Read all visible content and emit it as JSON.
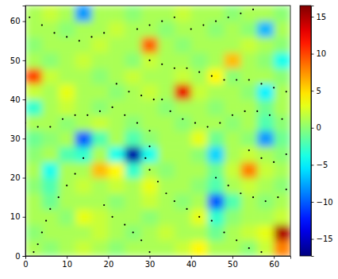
{
  "chart_data": {
    "type": "heatmap",
    "color": "jet",
    "xlim": [
      0,
      64
    ],
    "ylim": [
      0,
      64
    ],
    "xticks": [
      0,
      10,
      20,
      30,
      40,
      50,
      60
    ],
    "yticks": [
      0,
      10,
      20,
      30,
      40,
      50,
      60
    ],
    "x_edges": [
      0,
      4,
      8,
      12,
      16,
      20,
      24,
      28,
      32,
      36,
      40,
      44,
      48,
      52,
      56,
      60,
      64
    ],
    "y_edges": [
      0,
      4,
      8,
      12,
      16,
      20,
      24,
      28,
      32,
      36,
      40,
      44,
      48,
      52,
      56,
      60,
      64
    ],
    "z": [
      [
        1,
        0,
        1,
        2,
        1,
        0,
        1,
        1,
        1,
        2,
        4,
        1,
        1,
        0,
        2,
        8
      ],
      [
        0,
        1,
        1,
        1,
        2,
        1,
        0,
        1,
        2,
        1,
        1,
        -1,
        1,
        2,
        3,
        15
      ],
      [
        1,
        1,
        0,
        3,
        2,
        1,
        1,
        0,
        1,
        1,
        3,
        -3,
        0,
        1,
        1,
        2
      ],
      [
        1,
        -1,
        1,
        1,
        1,
        0,
        1,
        2,
        1,
        0,
        1,
        -10,
        -2,
        1,
        0,
        1
      ],
      [
        0,
        -2,
        1,
        2,
        1,
        2,
        1,
        3,
        1,
        1,
        0,
        -2,
        1,
        2,
        1,
        0
      ],
      [
        1,
        -4,
        1,
        1,
        6,
        4,
        -3,
        1,
        0,
        1,
        1,
        -1,
        2,
        8,
        2,
        1
      ],
      [
        0,
        1,
        -2,
        -3,
        1,
        -4,
        -16,
        -4,
        1,
        1,
        0,
        -6,
        1,
        2,
        1,
        0
      ],
      [
        -1,
        0,
        1,
        -10,
        -2,
        1,
        -2,
        0,
        1,
        1,
        3,
        -1,
        1,
        0,
        -8,
        -1
      ],
      [
        1,
        1,
        0,
        1,
        2,
        1,
        0,
        1,
        1,
        0,
        1,
        1,
        0,
        1,
        -2,
        0
      ],
      [
        -3,
        1,
        2,
        1,
        0,
        1,
        1,
        1,
        0,
        1,
        1,
        0,
        1,
        1,
        -1,
        1
      ],
      [
        2,
        1,
        3,
        1,
        1,
        0,
        1,
        2,
        1,
        13,
        2,
        1,
        1,
        0,
        -5,
        1
      ],
      [
        10,
        2,
        1,
        1,
        0,
        1,
        2,
        1,
        1,
        2,
        1,
        4,
        0,
        1,
        1,
        0
      ],
      [
        1,
        0,
        1,
        2,
        1,
        1,
        0,
        2,
        1,
        1,
        0,
        1,
        6,
        1,
        0,
        -4
      ],
      [
        0,
        1,
        1,
        1,
        2,
        1,
        1,
        9,
        1,
        0,
        1,
        1,
        1,
        2,
        1,
        0
      ],
      [
        1,
        1,
        0,
        1,
        1,
        2,
        1,
        1,
        0,
        1,
        1,
        0,
        1,
        0,
        -7,
        1
      ],
      [
        1,
        2,
        1,
        -8,
        1,
        1,
        0,
        1,
        1,
        2,
        1,
        1,
        0,
        1,
        1,
        0
      ]
    ],
    "colorbar": {
      "range": [
        -17.3,
        16.5
      ],
      "ticks": [
        {
          "value": -15,
          "label": "−15"
        },
        {
          "value": -10,
          "label": "−10"
        },
        {
          "value": -5,
          "label": "−5"
        },
        0,
        5,
        10,
        15
      ]
    },
    "particles": {
      "color": "#000000",
      "marker": "o",
      "points": [
        [
          1,
          61
        ],
        [
          4,
          59
        ],
        [
          7,
          57
        ],
        [
          10,
          56
        ],
        [
          13,
          55
        ],
        [
          16,
          56
        ],
        [
          19,
          57
        ],
        [
          30,
          50
        ],
        [
          33,
          49
        ],
        [
          36,
          48
        ],
        [
          39,
          48
        ],
        [
          42,
          47
        ],
        [
          45,
          46
        ],
        [
          48,
          45
        ],
        [
          51,
          45
        ],
        [
          54,
          45
        ],
        [
          57,
          44
        ],
        [
          60,
          43
        ],
        [
          63,
          42
        ],
        [
          33,
          40
        ],
        [
          35,
          37
        ],
        [
          38,
          35
        ],
        [
          41,
          34
        ],
        [
          44,
          33
        ],
        [
          47,
          34
        ],
        [
          50,
          36
        ],
        [
          53,
          37
        ],
        [
          56,
          37
        ],
        [
          59,
          36
        ],
        [
          62,
          35
        ],
        [
          0,
          34
        ],
        [
          3,
          33
        ],
        [
          6,
          33
        ],
        [
          9,
          35
        ],
        [
          12,
          36
        ],
        [
          15,
          36
        ],
        [
          18,
          37
        ],
        [
          21,
          38
        ],
        [
          24,
          36
        ],
        [
          27,
          34
        ],
        [
          30,
          32
        ],
        [
          30,
          28
        ],
        [
          29,
          25
        ],
        [
          30,
          22
        ],
        [
          32,
          19
        ],
        [
          34,
          16
        ],
        [
          36,
          14
        ],
        [
          39,
          12
        ],
        [
          42,
          10
        ],
        [
          45,
          9
        ],
        [
          14,
          25
        ],
        [
          12,
          21
        ],
        [
          10,
          18
        ],
        [
          8,
          15
        ],
        [
          6,
          12
        ],
        [
          5,
          9
        ],
        [
          4,
          6
        ],
        [
          3,
          3
        ],
        [
          2,
          1
        ],
        [
          19,
          13
        ],
        [
          21,
          10
        ],
        [
          24,
          8
        ],
        [
          26,
          6
        ],
        [
          28,
          4
        ],
        [
          30,
          1
        ],
        [
          46,
          20
        ],
        [
          49,
          18
        ],
        [
          52,
          16
        ],
        [
          55,
          15
        ],
        [
          58,
          14
        ],
        [
          61,
          15
        ],
        [
          63,
          17
        ],
        [
          40,
          58
        ],
        [
          43,
          59
        ],
        [
          46,
          60
        ],
        [
          49,
          61
        ],
        [
          52,
          62
        ],
        [
          55,
          63
        ],
        [
          27,
          58
        ],
        [
          30,
          59
        ],
        [
          33,
          60
        ],
        [
          36,
          61
        ],
        [
          54,
          27
        ],
        [
          57,
          25
        ],
        [
          60,
          24
        ],
        [
          63,
          26
        ],
        [
          48,
          6
        ],
        [
          51,
          4
        ],
        [
          54,
          2
        ],
        [
          57,
          1
        ],
        [
          22,
          44
        ],
        [
          25,
          42
        ],
        [
          28,
          41
        ],
        [
          31,
          40
        ]
      ]
    }
  }
}
